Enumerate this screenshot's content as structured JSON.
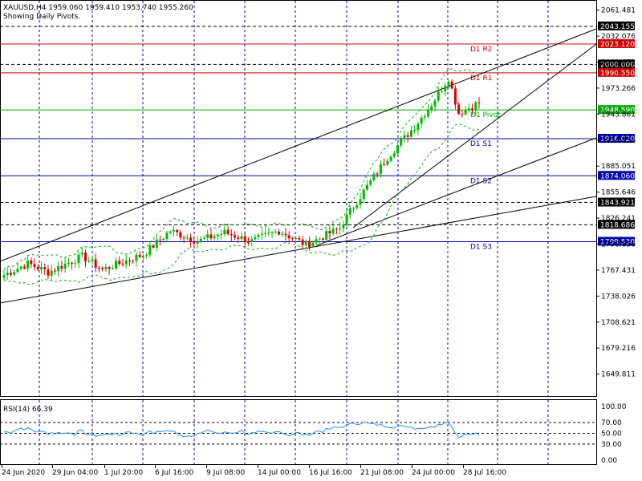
{
  "header": {
    "symbol_line": "XAUUSD,H4  1959.060 1959.410 1953.740 1955.260",
    "subtitle": "Showing Daily Pivots."
  },
  "rsi": {
    "label": "RSI(14) 66.39",
    "levels": [
      70,
      50,
      30
    ],
    "ticks": [
      "100.00",
      "70.00",
      "50.00",
      "30.00",
      "0.00"
    ]
  },
  "colors": {
    "bull": "#00bb00",
    "bear": "#dd0000",
    "resistance": "#cc0000",
    "support": "#0000aa",
    "pivot": "#00aa00",
    "grid": "#0000aa",
    "rsi_line": "#1e90ff",
    "envelope": "#00aa00"
  },
  "chart_data": {
    "type": "candlestick",
    "ylim": [
      1625,
      2072
    ],
    "y_ticks": [
      2061.481,
      2032.076,
      2002.671,
      1973.266,
      1943.861,
      1914.456,
      1885.051,
      1855.646,
      1826.241,
      1796.836,
      1767.431,
      1738.026,
      1708.621,
      1679.216,
      1649.811
    ],
    "x_labels": [
      "24 Jun 2020",
      "29 Jun 04:00",
      "1 Jul 20:00",
      "6 Jul 16:00",
      "9 Jul 08:00",
      "14 Jul 00:00",
      "16 Jul 16:00",
      "21 Jul 08:00",
      "24 Jul 00:00",
      "28 Jul 16:00"
    ],
    "pivot_lines": [
      {
        "label": "D1 R2",
        "value": 2023.12,
        "tag": "2023.120",
        "kind": "resistance"
      },
      {
        "label": "D1 R1",
        "value": 1990.55,
        "tag": "1990.550",
        "kind": "resistance"
      },
      {
        "label": "D1 Pivot",
        "value": 1948.59,
        "tag": "1948.590",
        "kind": "pivot"
      },
      {
        "label": "D1 S1",
        "value": 1916.02,
        "tag": "1916.020",
        "kind": "support"
      },
      {
        "label": "D1 S2",
        "value": 1874.06,
        "tag": "1874.060",
        "kind": "support"
      },
      {
        "label": "D1 S3",
        "value": 1799.53,
        "tag": "1799.530",
        "kind": "support"
      }
    ],
    "dashed_levels": [
      {
        "value": 2043.155,
        "tag": "2043.155"
      },
      {
        "value": 2000.0,
        "tag": "2000.000"
      },
      {
        "value": 1843.921,
        "tag": "1843.921"
      },
      {
        "value": 1818.686,
        "tag": "1818.686"
      }
    ],
    "price_segments": [
      {
        "from": 1760,
        "to": 1775,
        "bars": 8
      },
      {
        "from": 1775,
        "to": 1765,
        "bars": 6
      },
      {
        "from": 1765,
        "to": 1783,
        "bars": 10
      },
      {
        "from": 1783,
        "to": 1768,
        "bars": 6
      },
      {
        "from": 1768,
        "to": 1785,
        "bars": 12
      },
      {
        "from": 1785,
        "to": 1812,
        "bars": 8
      },
      {
        "from": 1812,
        "to": 1800,
        "bars": 8
      },
      {
        "from": 1800,
        "to": 1810,
        "bars": 8
      },
      {
        "from": 1810,
        "to": 1800,
        "bars": 8
      },
      {
        "from": 1800,
        "to": 1812,
        "bars": 8
      },
      {
        "from": 1812,
        "to": 1796,
        "bars": 8
      },
      {
        "from": 1796,
        "to": 1815,
        "bars": 10
      },
      {
        "from": 1815,
        "to": 1840,
        "bars": 4
      },
      {
        "from": 1840,
        "to": 1895,
        "bars": 10
      },
      {
        "from": 1895,
        "to": 1930,
        "bars": 8
      },
      {
        "from": 1930,
        "to": 1955,
        "bars": 5
      },
      {
        "from": 1955,
        "to": 1985,
        "bars": 5
      },
      {
        "from": 1985,
        "to": 1945,
        "bars": 3
      },
      {
        "from": 1945,
        "to": 1957,
        "bars": 6
      }
    ]
  }
}
